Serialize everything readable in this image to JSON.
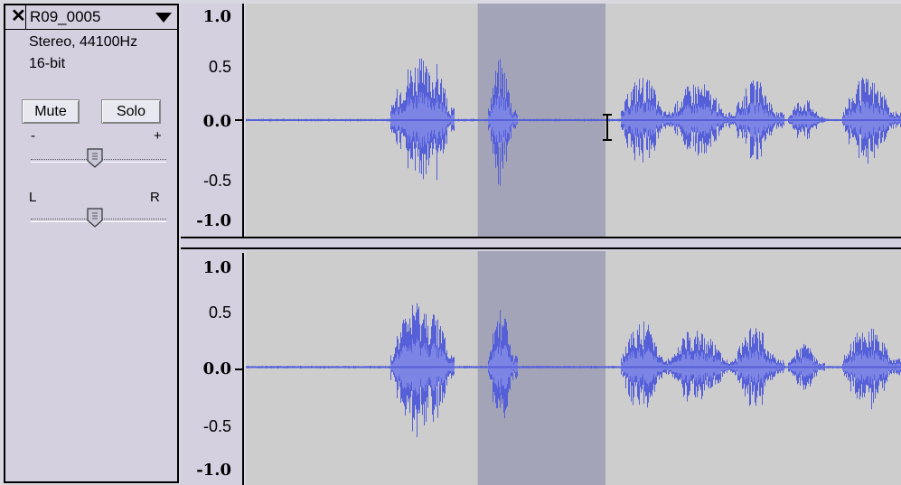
{
  "track": {
    "name": "R09_0005",
    "info_line1": "Stereo, 44100Hz",
    "info_line2": "16-bit",
    "mute_label": "Mute",
    "solo_label": "Solo",
    "gain_minus": "-",
    "gain_plus": "+",
    "pan_left": "L",
    "pan_right": "R",
    "gain_value": 0.5,
    "pan_value": 0.5
  },
  "ruler": {
    "ticks": [
      "1.0",
      "0.5",
      "0.0",
      "-0.5",
      "-1.0"
    ]
  },
  "colors": {
    "waveform": "#5560d8",
    "waveform_rms": "#7c84e4",
    "selection": "#a4a4b8",
    "background": "#cdcdcd"
  },
  "selection": {
    "start_fraction": 0.354,
    "end_fraction": 0.549
  },
  "cursor": {
    "icon": "text-cursor-icon"
  }
}
